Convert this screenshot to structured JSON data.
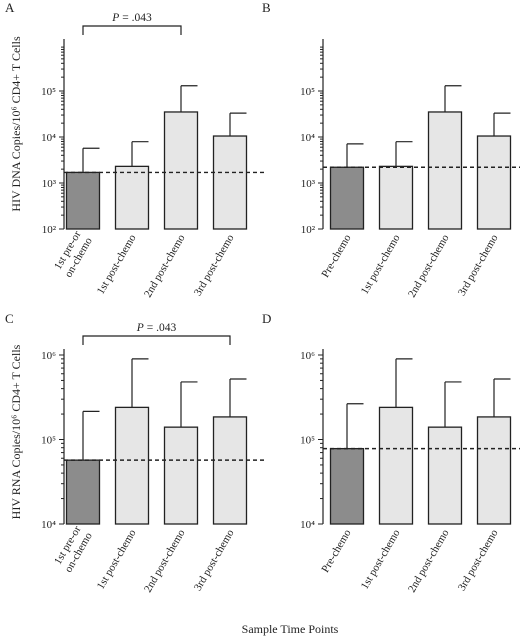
{
  "y_titles": {
    "dna": "HIV DNA Copies/10⁶ CD4+ T Cells",
    "rna": "HIV RNA Copies/10⁶ CD4+ T Cells"
  },
  "x_title": "Sample Time Points",
  "colors": {
    "dark_bar": "#8c8c8c",
    "light_bar": "#e6e6e6"
  },
  "chart_data": [
    {
      "panel": "A",
      "type": "bar",
      "scale": "log",
      "ylim": [
        100,
        1000000
      ],
      "yticks": [
        100,
        1000,
        10000,
        100000
      ],
      "ytick_labels": [
        "10²",
        "10³",
        "10⁴",
        "10⁵"
      ],
      "categories": [
        "1st pre-or on-chemo",
        "1st post-chemo",
        "2nd post-chemo",
        "3rd post-chemo"
      ],
      "values": [
        1700,
        2300,
        35000,
        10500
      ],
      "error_upper": [
        5700,
        7900,
        130000,
        33000
      ],
      "reference_line": 1700,
      "annotation": {
        "text": "P = .043",
        "from": 0,
        "to": 2
      }
    },
    {
      "panel": "B",
      "type": "bar",
      "scale": "log",
      "ylim": [
        100,
        1000000
      ],
      "yticks": [
        100,
        1000,
        10000,
        100000
      ],
      "ytick_labels": [
        "10²",
        "10³",
        "10⁴",
        "10⁵"
      ],
      "categories": [
        "Pre-chemo",
        "1st post-chemo",
        "2nd post-chemo",
        "3rd post-chemo"
      ],
      "values": [
        2200,
        2300,
        35000,
        10500
      ],
      "error_upper": [
        7100,
        7900,
        130000,
        33000
      ],
      "reference_line": 2200
    },
    {
      "panel": "C",
      "type": "bar",
      "scale": "log",
      "ylim": [
        10000,
        1000000
      ],
      "yticks": [
        10000,
        100000,
        1000000
      ],
      "ytick_labels": [
        "10⁴",
        "10⁵",
        "10⁶"
      ],
      "categories": [
        "1st pre-or on-chemo",
        "1st post-chemo",
        "2nd post-chemo",
        "3rd post-chemo"
      ],
      "values": [
        57000,
        240000,
        140000,
        185000
      ],
      "error_upper": [
        215000,
        900000,
        480000,
        520000
      ],
      "reference_line": 57000,
      "annotation": {
        "text": "P = .043",
        "from": 0,
        "to": 3
      }
    },
    {
      "panel": "D",
      "type": "bar",
      "scale": "log",
      "ylim": [
        10000,
        1000000
      ],
      "yticks": [
        10000,
        100000,
        1000000
      ],
      "ytick_labels": [
        "10⁴",
        "10⁵",
        "10⁶"
      ],
      "categories": [
        "Pre-chemo",
        "1st post-chemo",
        "2nd post-chemo",
        "3rd post-chemo"
      ],
      "values": [
        78000,
        240000,
        140000,
        185000
      ],
      "error_upper": [
        265000,
        900000,
        480000,
        520000
      ],
      "reference_line": 78000
    }
  ]
}
